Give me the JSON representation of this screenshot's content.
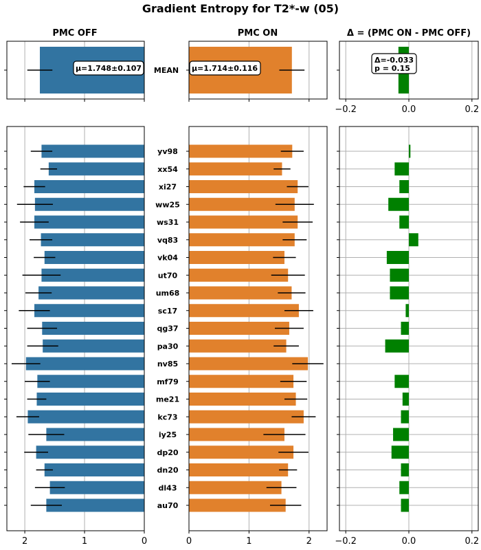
{
  "chart_data": {
    "type": "bar",
    "title": "Gradient Entropy for T2*-w (05)",
    "panels": {
      "off_title": "PMC OFF",
      "on_title": "PMC ON",
      "diff_title": "Δ = (PMC ON - PMC OFF)"
    },
    "mean": {
      "label": "MEAN",
      "off_value": 1.748,
      "off_err": 0.21,
      "off_text": "μ=1.748±0.107",
      "on_value": 1.714,
      "on_err": 0.21,
      "on_text": "μ=1.714±0.116",
      "diff_value": -0.033,
      "diff_text": "Δ=-0.033",
      "p_text": "p = 0.15"
    },
    "categories": [
      "yv98",
      "xx54",
      "xi27",
      "ww25",
      "ws31",
      "vq83",
      "vk04",
      "ut70",
      "um68",
      "sc17",
      "qg37",
      "pa30",
      "nv85",
      "mf79",
      "me21",
      "kc73",
      "iy25",
      "dp20",
      "dn20",
      "dl43",
      "au70"
    ],
    "series": [
      {
        "name": "PMC OFF",
        "color": "#3274a1",
        "values": [
          1.72,
          1.6,
          1.84,
          1.83,
          1.84,
          1.73,
          1.67,
          1.72,
          1.77,
          1.84,
          1.71,
          1.7,
          1.98,
          1.79,
          1.8,
          1.95,
          1.64,
          1.81,
          1.67,
          1.58,
          1.64
        ],
        "err": [
          0.18,
          0.14,
          0.18,
          0.3,
          0.24,
          0.19,
          0.18,
          0.32,
          0.22,
          0.26,
          0.25,
          0.26,
          0.24,
          0.21,
          0.16,
          0.19,
          0.3,
          0.2,
          0.14,
          0.25,
          0.26
        ]
      },
      {
        "name": "PMC ON",
        "color": "#e1812c",
        "values": [
          1.72,
          1.55,
          1.81,
          1.76,
          1.81,
          1.76,
          1.59,
          1.65,
          1.71,
          1.83,
          1.67,
          1.62,
          1.98,
          1.74,
          1.78,
          1.91,
          1.59,
          1.74,
          1.65,
          1.54,
          1.61
        ],
        "err": [
          0.19,
          0.14,
          0.18,
          0.32,
          0.25,
          0.2,
          0.19,
          0.28,
          0.23,
          0.24,
          0.24,
          0.21,
          0.26,
          0.22,
          0.19,
          0.2,
          0.35,
          0.25,
          0.15,
          0.25,
          0.26
        ]
      }
    ],
    "diff": {
      "color": "#008000",
      "values": [
        0.005,
        -0.045,
        -0.03,
        -0.065,
        -0.03,
        0.03,
        -0.07,
        -0.06,
        -0.06,
        -0.01,
        -0.025,
        -0.075,
        0.0,
        -0.045,
        -0.02,
        -0.025,
        -0.05,
        -0.055,
        -0.025,
        -0.03,
        -0.025
      ]
    },
    "xlim_off": [
      2.3,
      0
    ],
    "xlim_on": [
      0,
      2.3
    ],
    "xlim_diff": [
      -0.22,
      0.22
    ],
    "xticks_bars": [
      "0",
      "1",
      "2"
    ],
    "xticks_diff": [
      "−0.2",
      "0.0",
      "0.2"
    ],
    "grid": true
  }
}
